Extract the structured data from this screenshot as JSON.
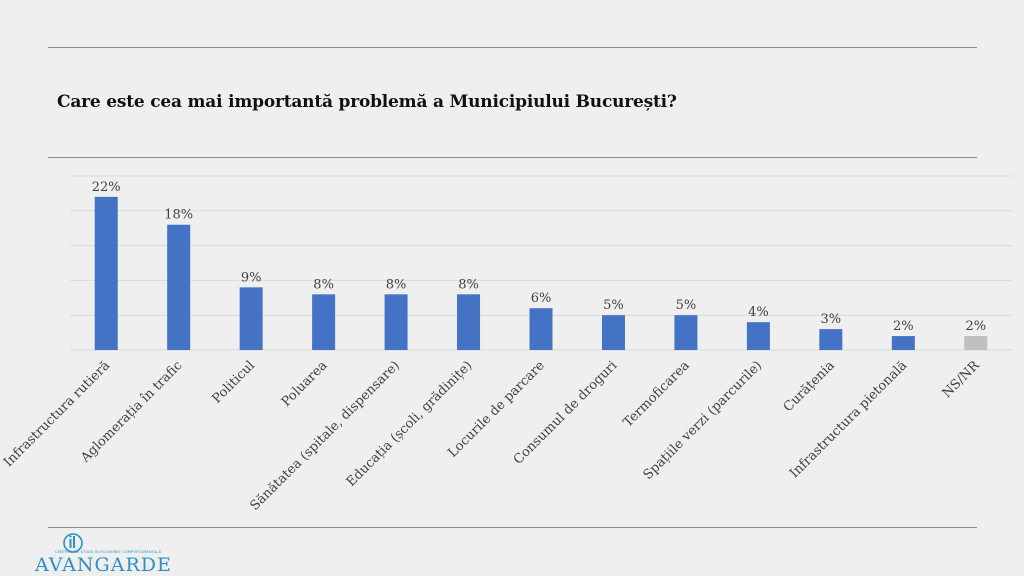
{
  "title": "Care este cea mai importantă problemă a Municipiului București?",
  "logo": {
    "name": "AVANGARDE",
    "tagline": "CENTRUL DE STUDII ÎN ECONOMIE COMPORTAMENTALĂ"
  },
  "colors": {
    "bar": "#4472c4",
    "bar_other": "#bfbfbf",
    "grid": "#d9d9d9",
    "rule": "#8c8c8c",
    "logo": "#2b8fc9"
  },
  "chart_data": {
    "type": "bar",
    "categories": [
      "Infrastructura rutieră",
      "Aglomerația în trafic",
      "Politicul",
      "Poluarea",
      "Sănătatea (spitale, dispensare)",
      "Educația (școli, grădinițe)",
      "Locurile de parcare",
      "Consumul de droguri",
      "Termoficarea",
      "Spațiile verzi (parcurile)",
      "Curățenia",
      "Infrastructura pietonală",
      "NS/NR"
    ],
    "values": [
      22,
      18,
      9,
      8,
      8,
      8,
      6,
      5,
      5,
      4,
      3,
      2,
      2
    ],
    "value_labels": [
      "22%",
      "18%",
      "9%",
      "8%",
      "8%",
      "8%",
      "6%",
      "5%",
      "5%",
      "4%",
      "3%",
      "2%",
      "2%"
    ],
    "ylim": [
      0,
      25
    ],
    "grid": true,
    "legend": "none",
    "highlight": {
      "NS/NR": "bar_other"
    }
  }
}
